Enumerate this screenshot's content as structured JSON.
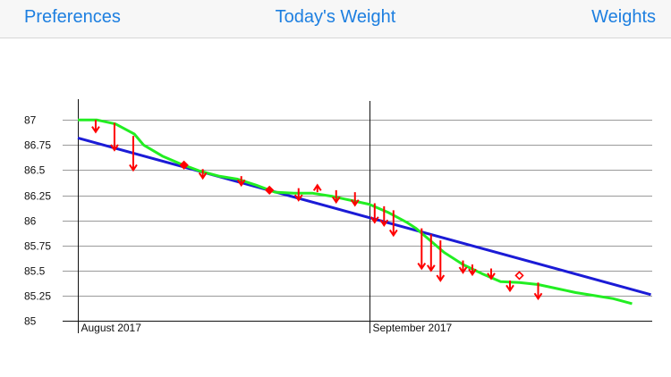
{
  "navbar": {
    "left_label": "Preferences",
    "title": "Today's Weight",
    "right_label": "Weights",
    "tint": "#1d7fe0"
  },
  "chart_data": {
    "type": "line",
    "title": "",
    "xlabel": "",
    "ylabel": "",
    "ylim": [
      85,
      87.1
    ],
    "y_ticks": [
      87,
      86.75,
      86.5,
      86.25,
      86,
      85.75,
      85.5,
      85.25,
      85
    ],
    "x_range_days": [
      1,
      51
    ],
    "month_markers": [
      {
        "label": "August 2017",
        "day": 1
      },
      {
        "label": "September 2017",
        "day": 32
      }
    ],
    "grid": true,
    "colors": {
      "trend": "#1b1bd6",
      "smoothed": "#22ee22",
      "measurement": "#ff0000",
      "axis": "#111111"
    },
    "series": [
      {
        "kind": "trend-line",
        "points": [
          {
            "day": 1,
            "value": 86.82
          },
          {
            "day": 62,
            "value": 85.26
          }
        ]
      },
      {
        "kind": "smoothed-average",
        "points": [
          {
            "day": 1,
            "value": 87.0
          },
          {
            "day": 3,
            "value": 87.0
          },
          {
            "day": 5,
            "value": 86.96
          },
          {
            "day": 7,
            "value": 86.86
          },
          {
            "day": 8,
            "value": 86.75
          },
          {
            "day": 10,
            "value": 86.64
          },
          {
            "day": 12,
            "value": 86.56
          },
          {
            "day": 14,
            "value": 86.49
          },
          {
            "day": 16,
            "value": 86.44
          },
          {
            "day": 18,
            "value": 86.41
          },
          {
            "day": 20,
            "value": 86.35
          },
          {
            "day": 22,
            "value": 86.28
          },
          {
            "day": 24,
            "value": 86.27
          },
          {
            "day": 26,
            "value": 86.27
          },
          {
            "day": 28,
            "value": 86.24
          },
          {
            "day": 30,
            "value": 86.2
          },
          {
            "day": 32,
            "value": 86.16
          },
          {
            "day": 34,
            "value": 86.08
          },
          {
            "day": 36,
            "value": 85.98
          },
          {
            "day": 37,
            "value": 85.92
          },
          {
            "day": 38,
            "value": 85.84
          },
          {
            "day": 40,
            "value": 85.68
          },
          {
            "day": 42,
            "value": 85.56
          },
          {
            "day": 44,
            "value": 85.47
          },
          {
            "day": 46,
            "value": 85.39
          },
          {
            "day": 48,
            "value": 85.38
          },
          {
            "day": 50,
            "value": 85.36
          },
          {
            "day": 52,
            "value": 85.32
          },
          {
            "day": 54,
            "value": 85.28
          },
          {
            "day": 56,
            "value": 85.25
          },
          {
            "day": 58,
            "value": 85.22
          },
          {
            "day": 60,
            "value": 85.17
          }
        ]
      },
      {
        "kind": "measurements",
        "points": [
          {
            "day": 2.9,
            "value": 86.88,
            "avg": 87.0
          },
          {
            "day": 4.9,
            "value": 86.7,
            "avg": 86.97
          },
          {
            "day": 6.9,
            "value": 86.5,
            "avg": 86.84
          },
          {
            "day": 12.3,
            "value": 86.55,
            "avg": 86.55
          },
          {
            "day": 14.3,
            "value": 86.42,
            "avg": 86.51
          },
          {
            "day": 18.4,
            "value": 86.35,
            "avg": 86.44
          },
          {
            "day": 21.4,
            "value": 86.3,
            "avg": 86.3
          },
          {
            "day": 24.5,
            "value": 86.2,
            "avg": 86.32
          },
          {
            "day": 26.5,
            "value": 86.35,
            "avg": 86.28
          },
          {
            "day": 28.5,
            "value": 86.18,
            "avg": 86.3
          },
          {
            "day": 30.5,
            "value": 86.15,
            "avg": 86.28
          },
          {
            "day": 32.6,
            "value": 85.98,
            "avg": 86.17
          },
          {
            "day": 33.6,
            "value": 85.95,
            "avg": 86.14
          },
          {
            "day": 34.6,
            "value": 85.85,
            "avg": 86.1
          },
          {
            "day": 37.6,
            "value": 85.52,
            "avg": 85.92
          },
          {
            "day": 38.6,
            "value": 85.5,
            "avg": 85.86
          },
          {
            "day": 39.6,
            "value": 85.4,
            "avg": 85.8
          },
          {
            "day": 42.0,
            "value": 85.48,
            "avg": 85.6
          },
          {
            "day": 43.0,
            "value": 85.46,
            "avg": 85.56
          },
          {
            "day": 45.0,
            "value": 85.42,
            "avg": 85.52
          },
          {
            "day": 47.0,
            "value": 85.3,
            "avg": 85.4
          },
          {
            "day": 48.0,
            "value": 85.45,
            "avg": 85.45
          },
          {
            "day": 50.0,
            "value": 85.22,
            "avg": 85.38
          }
        ]
      }
    ]
  }
}
